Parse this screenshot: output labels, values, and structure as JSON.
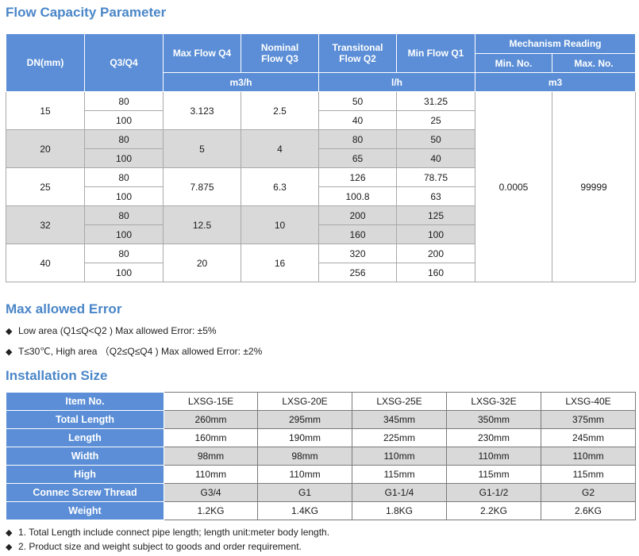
{
  "flow": {
    "title": "Flow Capacity Parameter",
    "headers": {
      "dn": "DN(mm)",
      "q3q4": "Q3/Q4",
      "max_flow": "Max Flow Q4",
      "nominal": "Nominal Flow Q3",
      "transitional": "Transitonal Flow Q2",
      "min_flow": "Min Flow Q1",
      "mechanism": "Mechanism Reading",
      "min_no": "Min. No.",
      "max_no": "Max. No.",
      "unit_m3h": "m3/h",
      "unit_lh": "l/h",
      "unit_m3": "m3"
    },
    "groups": [
      {
        "dn": "15",
        "q4": "3.123",
        "q3": "2.5",
        "rows": [
          {
            "ratio": "80",
            "q2": "50",
            "q1": "31.25"
          },
          {
            "ratio": "100",
            "q2": "40",
            "q1": "25"
          }
        ]
      },
      {
        "dn": "20",
        "q4": "5",
        "q3": "4",
        "rows": [
          {
            "ratio": "80",
            "q2": "80",
            "q1": "50"
          },
          {
            "ratio": "100",
            "q2": "65",
            "q1": "40"
          }
        ]
      },
      {
        "dn": "25",
        "q4": "7.875",
        "q3": "6.3",
        "rows": [
          {
            "ratio": "80",
            "q2": "126",
            "q1": "78.75"
          },
          {
            "ratio": "100",
            "q2": "100.8",
            "q1": "63"
          }
        ]
      },
      {
        "dn": "32",
        "q4": "12.5",
        "q3": "10",
        "rows": [
          {
            "ratio": "80",
            "q2": "200",
            "q1": "125"
          },
          {
            "ratio": "100",
            "q2": "160",
            "q1": "100"
          }
        ]
      },
      {
        "dn": "40",
        "q4": "20",
        "q3": "16",
        "rows": [
          {
            "ratio": "80",
            "q2": "320",
            "q1": "200"
          },
          {
            "ratio": "100",
            "q2": "256",
            "q1": "160"
          }
        ]
      }
    ],
    "min_no_value": "0.0005",
    "max_no_value": "99999"
  },
  "error": {
    "title": "Max allowed Error",
    "bullets": [
      "Low area (Q1≤Q<Q2 ) Max allowed Error: ±5%",
      "T≤30℃, High area （Q2≤Q≤Q4 ) Max allowed Error: ±2%"
    ]
  },
  "install": {
    "title": "Installation Size",
    "rows": [
      {
        "label": "Item No.",
        "values": [
          "LXSG-15E",
          "LXSG-20E",
          "LXSG-25E",
          "LXSG-32E",
          "LXSG-40E"
        ]
      },
      {
        "label": "Total Length",
        "values": [
          "260mm",
          "295mm",
          "345mm",
          "350mm",
          "375mm"
        ]
      },
      {
        "label": "Length",
        "values": [
          "160mm",
          "190mm",
          "225mm",
          "230mm",
          "245mm"
        ]
      },
      {
        "label": "Width",
        "values": [
          "98mm",
          "98mm",
          "110mm",
          "110mm",
          "110mm"
        ]
      },
      {
        "label": "High",
        "values": [
          "110mm",
          "110mm",
          "115mm",
          "115mm",
          "115mm"
        ]
      },
      {
        "label": "Connec Screw Thread",
        "values": [
          "G3/4",
          "G1",
          "G1-1/4",
          "G1-1/2",
          "G2"
        ]
      },
      {
        "label": "Weight",
        "values": [
          "1.2KG",
          "1.4KG",
          "1.8KG",
          "2.2KG",
          "2.6KG"
        ]
      }
    ],
    "notes": [
      "1. Total Length include connect pipe length; length unit:meter body length.",
      "2. Product size and weight subject to goods and order requirement."
    ]
  },
  "colors": {
    "header_blue": "#5b8ed6",
    "title_blue": "#4a86c8",
    "row_gray": "#d9d9d9"
  },
  "icons": {
    "bullet": "diamond-bullet-icon"
  }
}
